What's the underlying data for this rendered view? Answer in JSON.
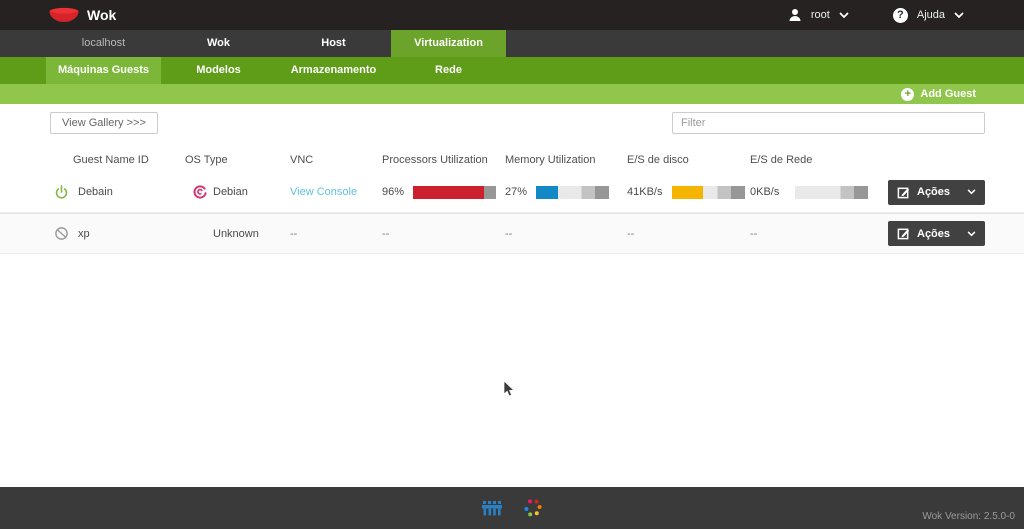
{
  "brand": {
    "name": "Wok"
  },
  "topbar": {
    "user_label": "root",
    "help_label": "Ajuda"
  },
  "nav_tabs": [
    {
      "label": "localhost"
    },
    {
      "label": "Wok"
    },
    {
      "label": "Host"
    },
    {
      "label": "Virtualization"
    }
  ],
  "sub_tabs": [
    {
      "label": "Máquinas Guests"
    },
    {
      "label": "Modelos"
    },
    {
      "label": "Armazenamento"
    },
    {
      "label": "Rede"
    }
  ],
  "action_bar": {
    "add_guest_label": "Add Guest"
  },
  "toolbar": {
    "view_gallery_label": "View Gallery >>>",
    "filter_placeholder": "Filter"
  },
  "table": {
    "headers": {
      "name": "Guest Name ID",
      "os": "OS Type",
      "vnc": "VNC",
      "processors": "Processors Utilization",
      "memory": "Memory Utilization",
      "disk": "E/S de disco",
      "network": "E/S de Rede"
    },
    "rows": [
      {
        "name": "Debain",
        "state": "running",
        "os": "Debian",
        "vnc": "View Console",
        "processors": {
          "label": "96%",
          "fill": 86,
          "color": "#cc202e"
        },
        "memory": {
          "label": "27%",
          "fill": 30,
          "color": "#1288c6"
        },
        "disk": {
          "label": "41KB/s",
          "fill": 42,
          "color": "#f4b400"
        },
        "network": {
          "label": "0KB/s",
          "fill": 0,
          "color": "#f4b400"
        },
        "actions_label": "Ações"
      },
      {
        "name": "xp",
        "state": "stopped",
        "os": "Unknown",
        "vnc": "--",
        "processors": {
          "label": "--"
        },
        "memory": {
          "label": "--"
        },
        "disk": {
          "label": "--"
        },
        "network": {
          "label": "--"
        },
        "actions_label": "Ações"
      }
    ]
  },
  "footer": {
    "version": "Wok Version: 2.5.0-0"
  },
  "colors": {
    "accent_green": "#6ca32a",
    "subtab_green": "#5f9c18",
    "light_green": "#90c64c",
    "cpu_red": "#cc202e",
    "mem_blue": "#1288c6",
    "io_yellow": "#f4b400",
    "link_blue": "#5fc1dd"
  }
}
